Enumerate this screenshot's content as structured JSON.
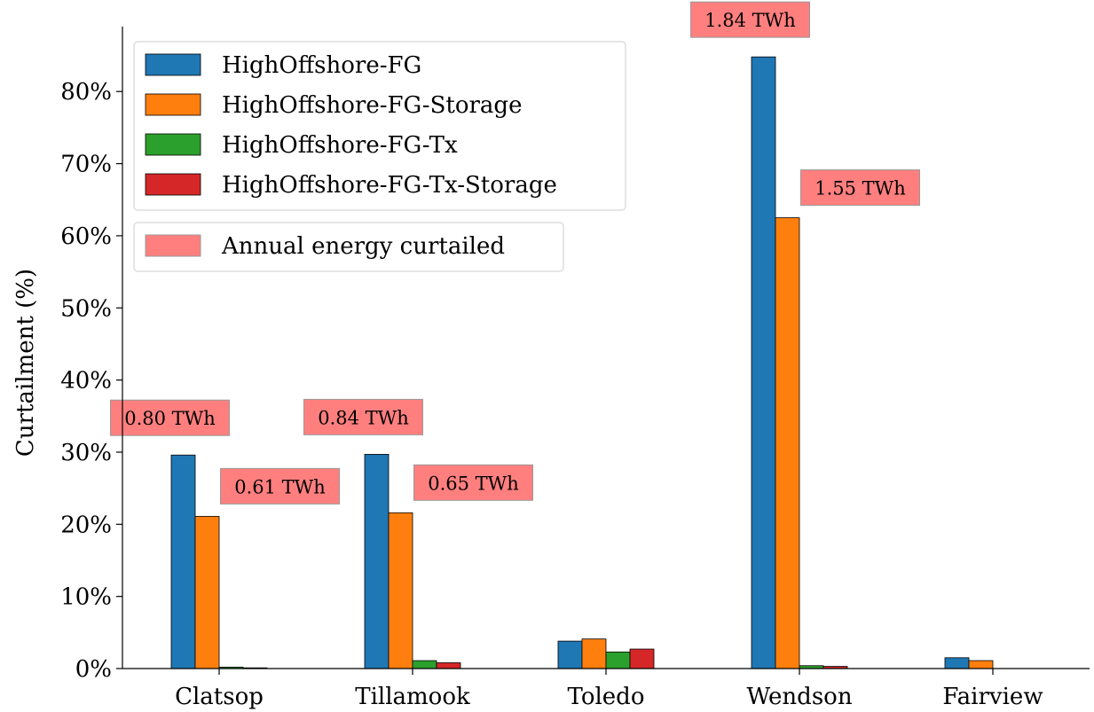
{
  "chart_data": {
    "type": "bar",
    "ylabel": "Curtailment (%)",
    "xlabel": "",
    "ylim": [
      0,
      89
    ],
    "yticks": [
      0,
      10,
      20,
      30,
      40,
      50,
      60,
      70,
      80
    ],
    "ytick_labels": [
      "0%",
      "10%",
      "20%",
      "30%",
      "40%",
      "50%",
      "60%",
      "70%",
      "80%"
    ],
    "categories": [
      "Clatsop",
      "Tillamook",
      "Toledo",
      "Wendson",
      "Fairview"
    ],
    "series": [
      {
        "name": "HighOffshore-FG",
        "color": "#1f77b4",
        "values": [
          29.6,
          29.7,
          3.8,
          84.8,
          1.5
        ]
      },
      {
        "name": "HighOffshore-FG-Storage",
        "color": "#ff7f0e",
        "values": [
          21.1,
          21.6,
          4.1,
          62.5,
          1.1
        ]
      },
      {
        "name": "HighOffshore-FG-Tx",
        "color": "#2ca02c",
        "values": [
          0.2,
          1.1,
          2.3,
          0.4,
          0.0
        ]
      },
      {
        "name": "HighOffshore-FG-Tx-Storage",
        "color": "#d62728",
        "values": [
          0.1,
          0.8,
          2.7,
          0.3,
          0.0
        ]
      }
    ],
    "annotation_legend": {
      "label": "Annual energy curtailed",
      "color": "#ff7f7f"
    },
    "annotations": [
      {
        "category": 0,
        "series": 0,
        "text": "0.80 TWh"
      },
      {
        "category": 0,
        "series": 1,
        "text": "0.61 TWh"
      },
      {
        "category": 1,
        "series": 0,
        "text": "0.84 TWh"
      },
      {
        "category": 1,
        "series": 1,
        "text": "0.65 TWh"
      },
      {
        "category": 3,
        "series": 0,
        "text": "1.84 TWh"
      },
      {
        "category": 3,
        "series": 1,
        "text": "1.55 TWh"
      }
    ],
    "legend_position": "top-left",
    "grid": false
  }
}
